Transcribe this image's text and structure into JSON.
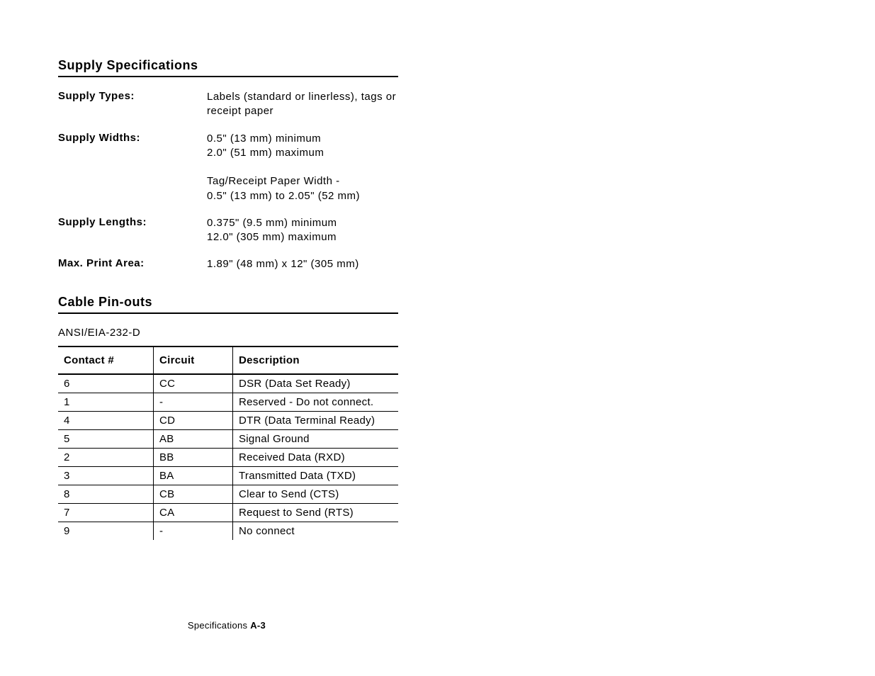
{
  "section1": {
    "heading": "Supply Specifications",
    "rows": [
      {
        "label": "Supply Types:",
        "value": "Labels (standard or linerless), tags or receipt paper"
      },
      {
        "label": "Supply Widths:",
        "value": "0.5\" (13 mm) minimum\n2.0\" (51 mm) maximum\n\nTag/Receipt Paper Width -\n0.5\" (13 mm) to 2.05\" (52 mm)"
      },
      {
        "label": "Supply Lengths:",
        "value": "0.375\" (9.5 mm) minimum\n12.0\" (305 mm) maximum"
      },
      {
        "label": "Max. Print Area:",
        "value": "1.89\" (48 mm) x 12\" (305 mm)"
      }
    ]
  },
  "section2": {
    "heading": "Cable Pin-outs",
    "standard": "ANSI/EIA-232-D",
    "columns": [
      "Contact #",
      "Circuit",
      "Description"
    ],
    "rows": [
      [
        "6",
        "CC",
        "DSR (Data Set Ready)"
      ],
      [
        "1",
        "-",
        "Reserved - Do not connect."
      ],
      [
        "4",
        "CD",
        "DTR (Data Terminal Ready)"
      ],
      [
        "5",
        "AB",
        "Signal Ground"
      ],
      [
        "2",
        "BB",
        "Received Data (RXD)"
      ],
      [
        "3",
        "BA",
        "Transmitted Data (TXD)"
      ],
      [
        "8",
        "CB",
        "Clear to Send (CTS)"
      ],
      [
        "7",
        "CA",
        "Request to Send (RTS)"
      ],
      [
        "9",
        "-",
        "No connect"
      ]
    ]
  },
  "footer": {
    "label": "Specifications",
    "page": "A-3"
  }
}
